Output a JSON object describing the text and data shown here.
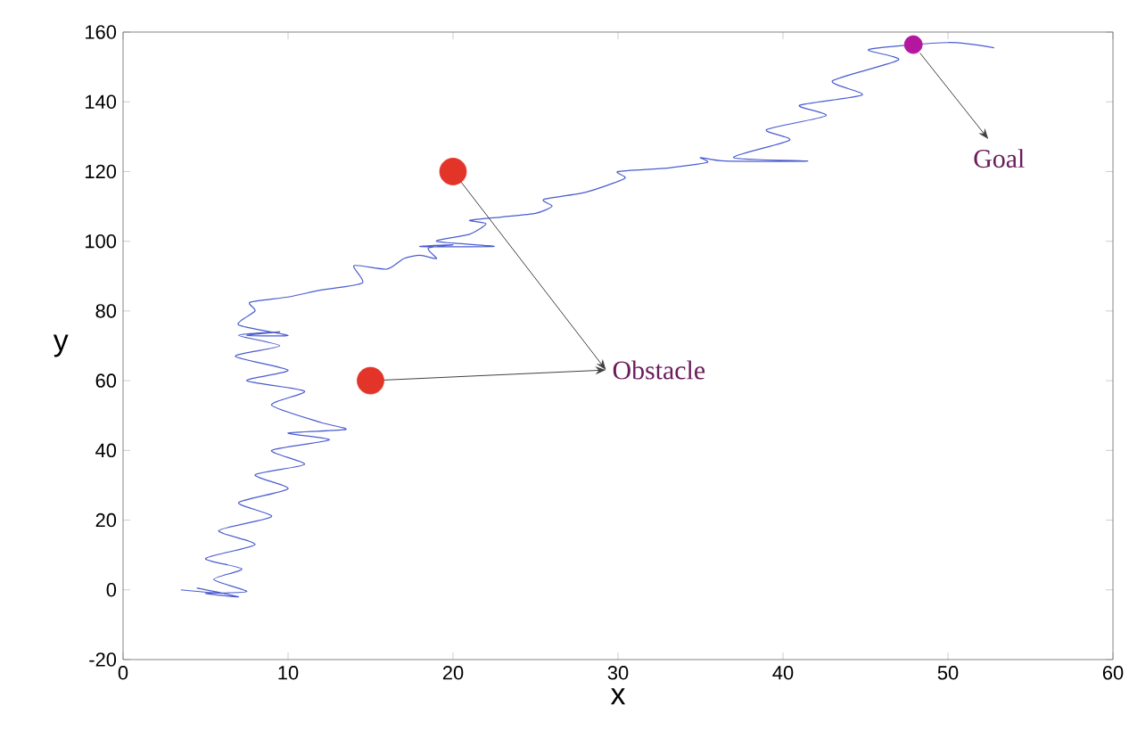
{
  "chart_data": {
    "type": "line",
    "xlabel": "x",
    "ylabel": "y",
    "xlim": [
      0,
      60
    ],
    "ylim": [
      -20,
      160
    ],
    "xticks": [
      0,
      10,
      20,
      30,
      40,
      50,
      60
    ],
    "yticks": [
      -20,
      0,
      20,
      40,
      60,
      80,
      100,
      120,
      140,
      160
    ],
    "grid": false,
    "series": [
      {
        "color": "#4a5ccf",
        "x": [
          3.5,
          6,
          4.5,
          7,
          5,
          7.5,
          5.5,
          7.2,
          5,
          8,
          5.8,
          9,
          7,
          10,
          8,
          11,
          9,
          12.5,
          10,
          13.5,
          12,
          9,
          11,
          7.5,
          10,
          6.8,
          9.5,
          7,
          9.5,
          7.5,
          10,
          7,
          8,
          7.7,
          10,
          12,
          14.5,
          14,
          16,
          17,
          18,
          19,
          18.5,
          20,
          18,
          22.5,
          19,
          21,
          22,
          21,
          23,
          25,
          26,
          25.5,
          28,
          30.4,
          30,
          33,
          35.4,
          35,
          36.5,
          41.5,
          37,
          40.4,
          39,
          42.6,
          41,
          44.8,
          43,
          47,
          45.2,
          47.9,
          50,
          52.8
        ],
        "values": [
          0,
          -1,
          0.5,
          -2,
          -1,
          -0.5,
          3,
          6,
          9,
          13,
          17,
          21,
          25,
          29,
          33,
          36,
          40,
          43,
          45,
          46,
          48,
          53,
          57,
          60,
          63,
          67,
          70,
          73,
          74,
          73,
          73,
          76,
          80,
          82.5,
          84,
          86,
          88,
          93,
          92,
          95,
          96,
          95,
          98,
          99,
          98.5,
          98.5,
          100,
          102,
          105,
          106,
          107,
          108,
          110,
          112,
          114,
          118,
          120,
          121,
          122.6,
          124,
          123,
          123,
          124,
          129,
          132,
          136,
          139,
          142,
          146,
          152,
          155,
          null,
          157,
          155.5
        ]
      },
      {
        "type": "scatter",
        "color": "#e3342a",
        "x": [
          20,
          15
        ],
        "values": [
          120,
          60
        ]
      },
      {
        "type": "scatter",
        "color": "#b4179f",
        "x": [
          47.9
        ],
        "values": [
          156.4
        ]
      }
    ],
    "annotations": [
      {
        "text": "Obstacle",
        "x": 15,
        "y": 60
      },
      {
        "text": "Goal",
        "x": 47.9,
        "y": 156.4
      }
    ]
  }
}
